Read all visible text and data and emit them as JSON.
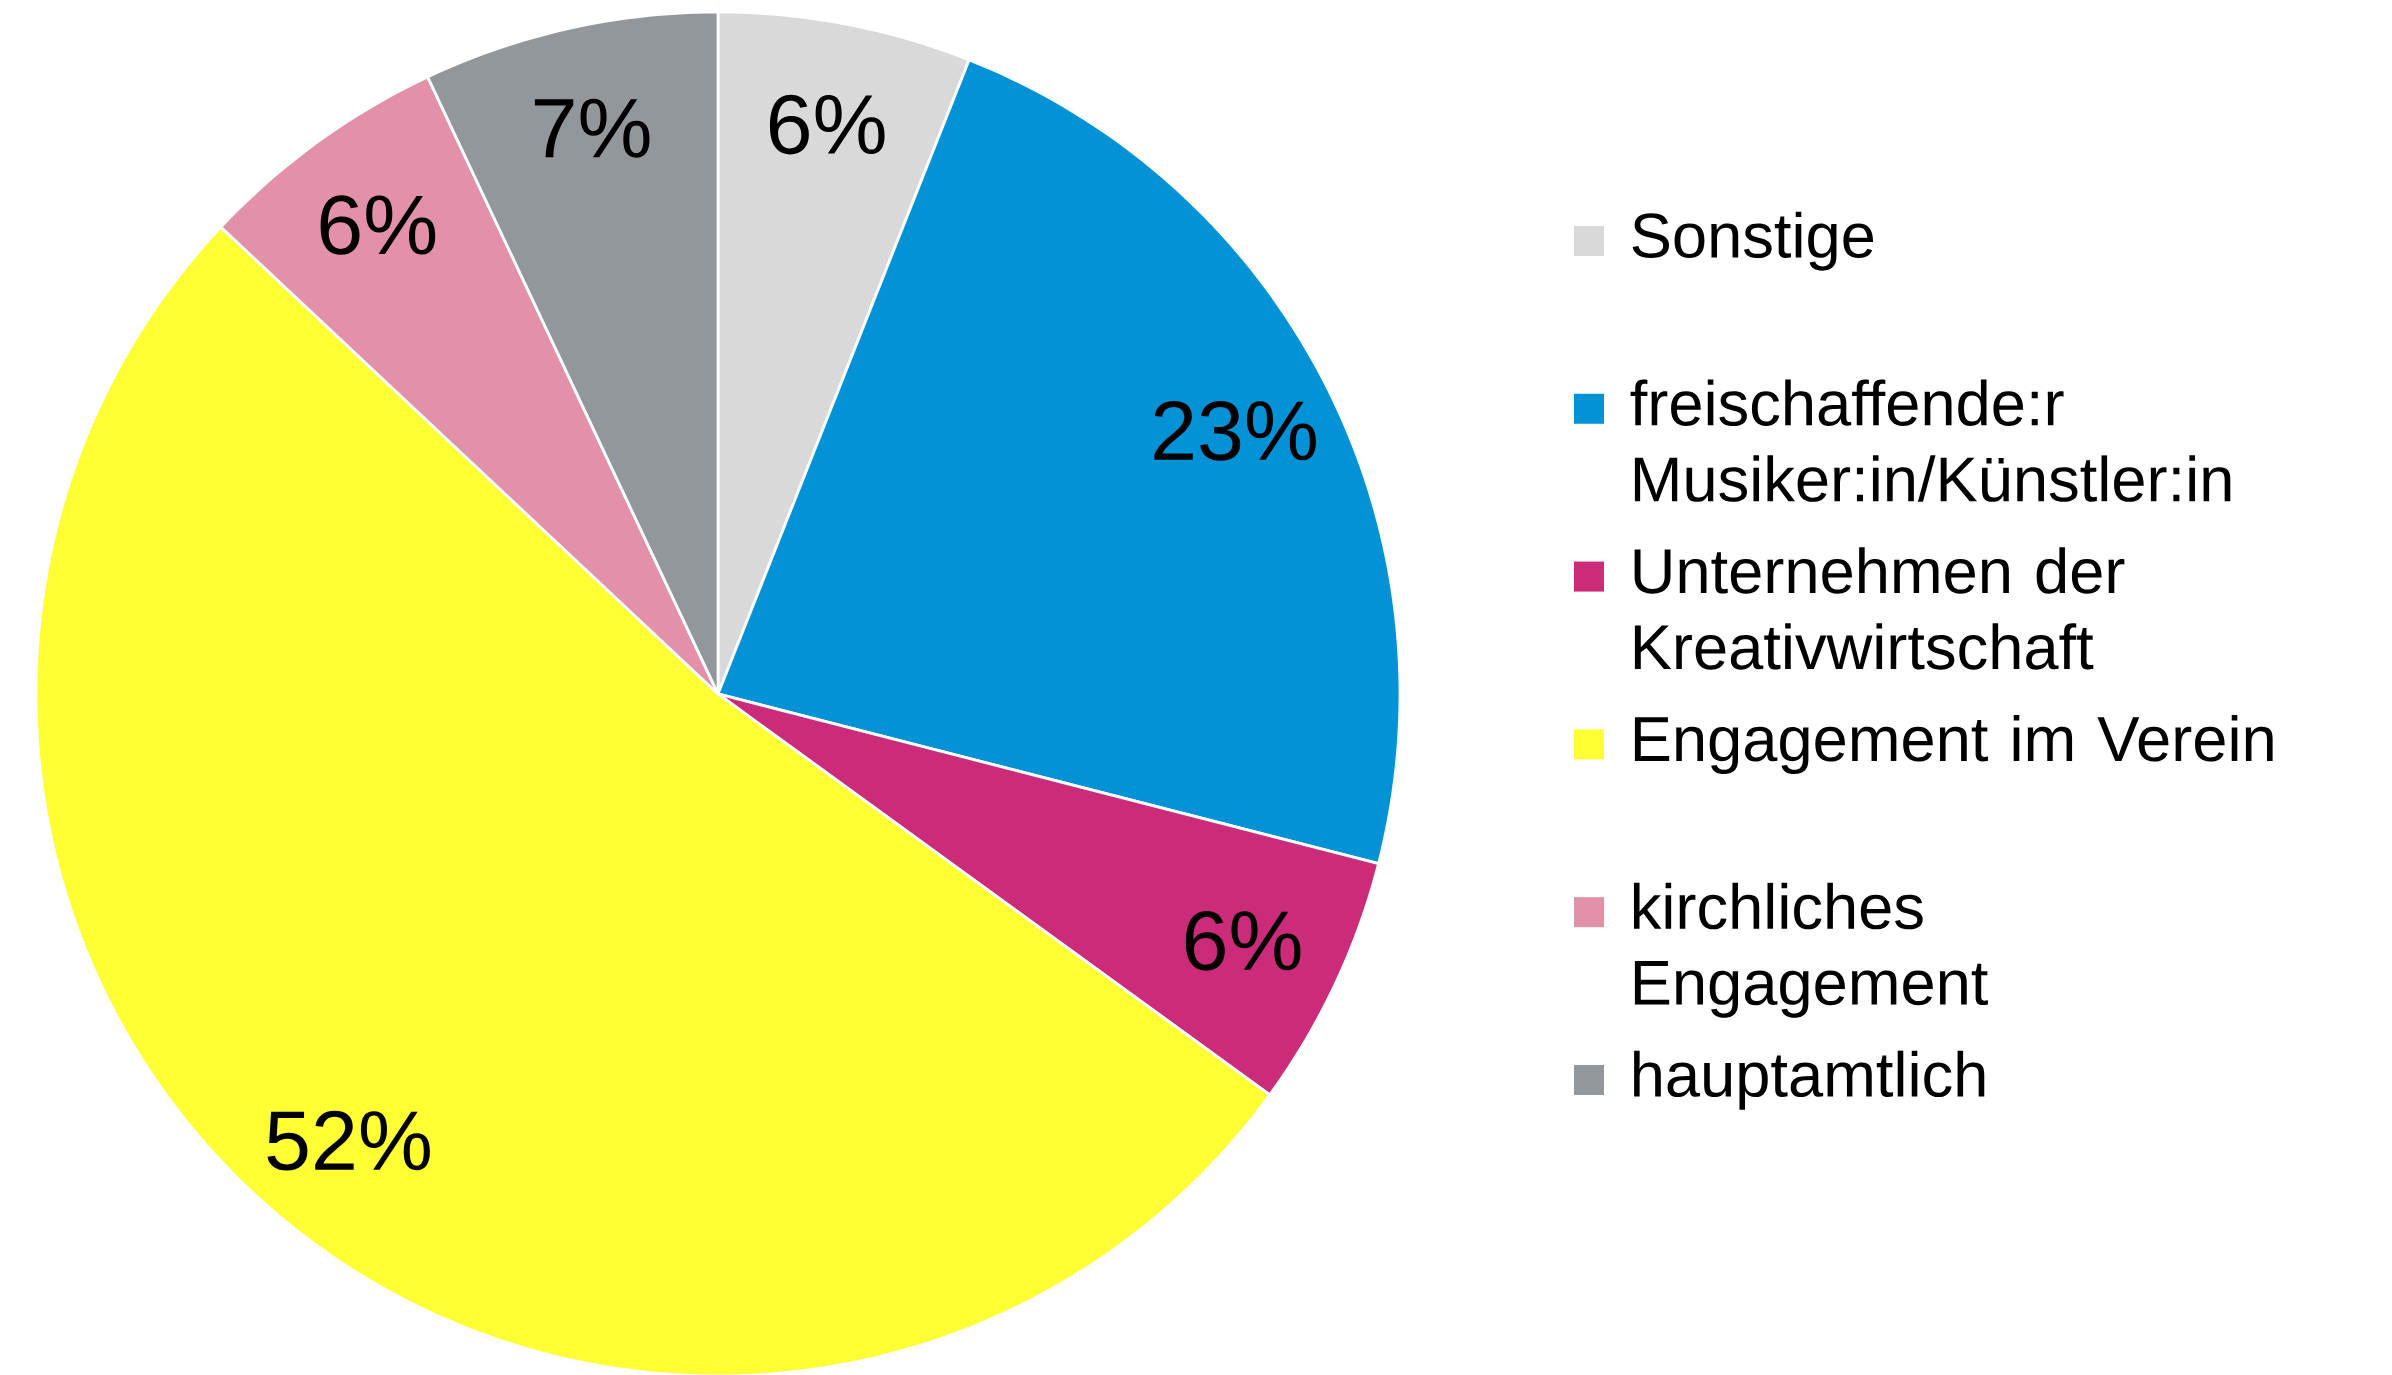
{
  "chart_data": {
    "type": "pie",
    "categories": [
      "Sonstige",
      "freischaffende:r Musiker:in/Künstler:in",
      "Unternehmen der Kreativwirtschaft",
      "Engagement im Verein",
      "kirchliches Engagement",
      "hauptamtlich"
    ],
    "values": [
      6,
      23,
      6,
      52,
      6,
      7
    ],
    "value_labels": [
      "6%",
      "23%",
      "6%",
      "52%",
      "6%",
      "7%"
    ],
    "colors": [
      "#d9d9d9",
      "#0392d6",
      "#cc2b7a",
      "#ffff33",
      "#e291a8",
      "#92979b"
    ],
    "legend": "right"
  }
}
